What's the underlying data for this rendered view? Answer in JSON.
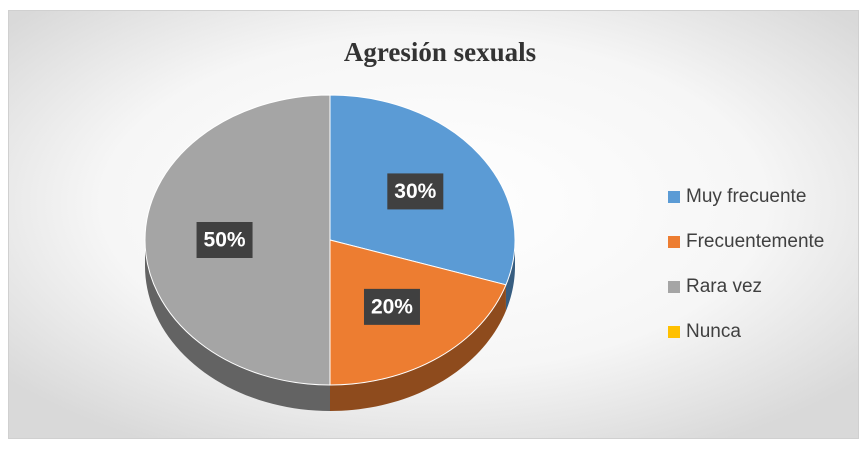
{
  "chart_data": {
    "type": "pie3d",
    "title": "Agresión sexuals",
    "categories": [
      "Muy frecuente",
      "Frecuentemente",
      "Rara vez",
      "Nunca"
    ],
    "values": [
      30,
      20,
      50,
      0
    ],
    "value_labels": [
      "30%",
      "20%",
      "50%",
      null
    ],
    "colors": [
      "#5b9bd5",
      "#ed7d31",
      "#a5a5a5",
      "#ffc000"
    ],
    "legend": "right"
  }
}
